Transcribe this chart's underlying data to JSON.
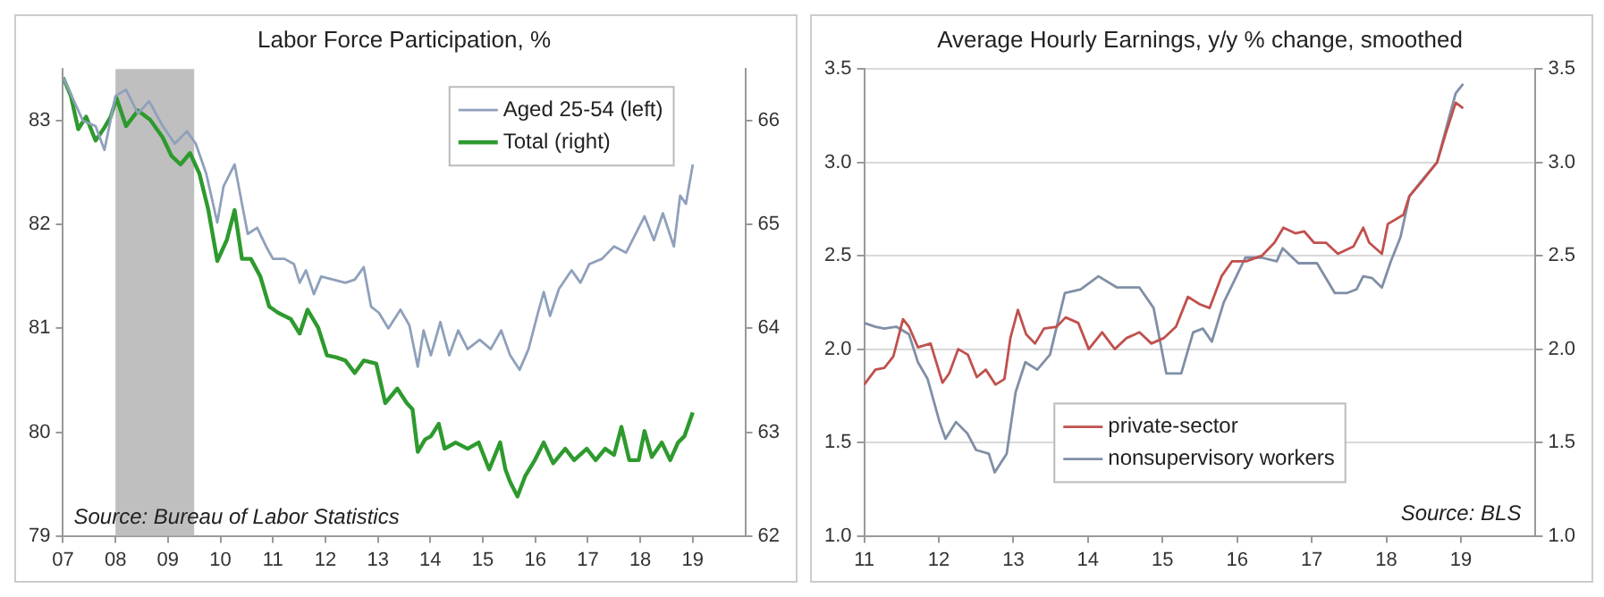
{
  "chart_data": [
    {
      "type": "line",
      "title": "Labor Force Participation, %",
      "xlim": [
        2007,
        2020
      ],
      "xticks": [
        {
          "value": 2007,
          "label": "07"
        },
        {
          "value": 2008,
          "label": "08"
        },
        {
          "value": 2009,
          "label": "09"
        },
        {
          "value": 2010,
          "label": "10"
        },
        {
          "value": 2011,
          "label": "11"
        },
        {
          "value": 2012,
          "label": "12"
        },
        {
          "value": 2013,
          "label": "13"
        },
        {
          "value": 2014,
          "label": "14"
        },
        {
          "value": 2015,
          "label": "15"
        },
        {
          "value": 2016,
          "label": "16"
        },
        {
          "value": 2017,
          "label": "17"
        },
        {
          "value": 2018,
          "label": "18"
        },
        {
          "value": 2019,
          "label": "19"
        }
      ],
      "ylim": [
        79,
        83.5
      ],
      "yticks": [
        79,
        80,
        81,
        82,
        83
      ],
      "y2lim": [
        62,
        66.5
      ],
      "y2ticks": [
        62,
        63,
        64,
        65,
        66
      ],
      "grid": false,
      "legend": "top right",
      "annotations": [
        "Source: Bureau of Labor Statistics"
      ],
      "bands": [
        {
          "axis": "x",
          "from": 2008,
          "to": 2009.5,
          "color": "#bfbfbf"
        }
      ],
      "series": [
        {
          "name": "Aged 25-54 (left)",
          "color": "#8fa0bb",
          "x": [
            2007,
            2007.21,
            2007.38,
            2007.62,
            2007.79,
            2008,
            2008.2,
            2008.43,
            2008.64,
            2008.9,
            2009.13,
            2009.36,
            2009.53,
            2009.73,
            2009.94,
            2010.06,
            2010.27,
            2010.41,
            2010.52,
            2010.7,
            2010.87,
            2011,
            2011.22,
            2011.4,
            2011.51,
            2011.63,
            2011.78,
            2011.92,
            2012.15,
            2012.38,
            2012.56,
            2012.73,
            2012.87,
            2013.02,
            2013.2,
            2013.43,
            2013.6,
            2013.76,
            2013.87,
            2014.01,
            2014.19,
            2014.36,
            2014.53,
            2014.71,
            2014.94,
            2015.15,
            2015.35,
            2015.52,
            2015.7,
            2015.87,
            2016.05,
            2016.16,
            2016.28,
            2016.45,
            2016.69,
            2016.86,
            2017.03,
            2017.27,
            2017.5,
            2017.73,
            2017.91,
            2018.08,
            2018.26,
            2018.43,
            2018.64,
            2018.76,
            2018.87,
            2019
          ],
          "values": [
            83.42,
            83.19,
            83.0,
            82.95,
            82.72,
            83.24,
            83.3,
            83.07,
            83.19,
            82.95,
            82.78,
            82.9,
            82.78,
            82.49,
            82.02,
            82.37,
            82.58,
            82.2,
            81.91,
            81.97,
            81.79,
            81.67,
            81.67,
            81.62,
            81.44,
            81.56,
            81.33,
            81.5,
            81.47,
            81.44,
            81.47,
            81.59,
            81.21,
            81.15,
            81.0,
            81.18,
            81.03,
            80.63,
            80.98,
            80.74,
            81.06,
            80.74,
            80.98,
            80.8,
            80.89,
            80.8,
            80.98,
            80.74,
            80.6,
            80.8,
            81.15,
            81.35,
            81.12,
            81.38,
            81.56,
            81.44,
            81.62,
            81.67,
            81.79,
            81.73,
            81.91,
            82.08,
            81.85,
            82.11,
            81.79,
            82.28,
            82.2,
            82.58
          ]
        },
        {
          "name": "Total (right)",
          "color": "#2e9a2e",
          "axis": "y2",
          "x": [
            2007,
            2007.15,
            2007.29,
            2007.44,
            2007.62,
            2007.77,
            2007.91,
            2008.02,
            2008.2,
            2008.43,
            2008.66,
            2008.9,
            2009.07,
            2009.24,
            2009.42,
            2009.6,
            2009.77,
            2009.94,
            2010.12,
            2010.27,
            2010.41,
            2010.58,
            2010.76,
            2010.93,
            2011.1,
            2011.34,
            2011.51,
            2011.66,
            2011.86,
            2012.03,
            2012.21,
            2012.38,
            2012.56,
            2012.73,
            2012.97,
            2013.14,
            2013.37,
            2013.55,
            2013.66,
            2013.76,
            2013.9,
            2014.01,
            2014.16,
            2014.27,
            2014.48,
            2014.71,
            2014.92,
            2015.12,
            2015.33,
            2015.43,
            2015.52,
            2015.66,
            2015.81,
            2015.99,
            2016.16,
            2016.34,
            2016.57,
            2016.74,
            2016.98,
            2017.15,
            2017.33,
            2017.5,
            2017.64,
            2017.79,
            2017.97,
            2018.08,
            2018.22,
            2018.41,
            2018.57,
            2018.72,
            2018.84,
            2019
          ],
          "values": [
            66.42,
            66.24,
            65.92,
            66.04,
            65.81,
            65.92,
            66.04,
            66.22,
            65.95,
            66.1,
            66.01,
            65.84,
            65.66,
            65.58,
            65.69,
            65.49,
            65.14,
            64.65,
            64.85,
            65.14,
            64.67,
            64.67,
            64.5,
            64.21,
            64.15,
            64.09,
            63.95,
            64.18,
            64.01,
            63.74,
            63.72,
            63.69,
            63.57,
            63.69,
            63.66,
            63.28,
            63.42,
            63.28,
            63.22,
            62.81,
            62.93,
            62.96,
            63.08,
            62.84,
            62.9,
            62.84,
            62.9,
            62.64,
            62.9,
            62.64,
            62.52,
            62.38,
            62.58,
            62.73,
            62.9,
            62.7,
            62.84,
            62.73,
            62.84,
            62.73,
            62.84,
            62.78,
            63.05,
            62.73,
            62.73,
            63.01,
            62.76,
            62.9,
            62.73,
            62.9,
            62.96,
            63.19
          ]
        }
      ]
    },
    {
      "type": "line",
      "title": "Average Hourly Earnings, y/y % change, smoothed",
      "xlim": [
        2011,
        2020
      ],
      "xticks": [
        {
          "value": 2011,
          "label": "11"
        },
        {
          "value": 2012,
          "label": "12"
        },
        {
          "value": 2013,
          "label": "13"
        },
        {
          "value": 2014,
          "label": "14"
        },
        {
          "value": 2015,
          "label": "15"
        },
        {
          "value": 2016,
          "label": "16"
        },
        {
          "value": 2017,
          "label": "17"
        },
        {
          "value": 2018,
          "label": "18"
        },
        {
          "value": 2019,
          "label": "19"
        }
      ],
      "ylim": [
        1,
        3.5
      ],
      "yticks": [
        {
          "value": 1,
          "label": "1.0"
        },
        1.5,
        {
          "value": 2,
          "label": "2.0"
        },
        2.5,
        {
          "value": 3,
          "label": "3.0"
        },
        3.5
      ],
      "y2lim": [
        1,
        3.5
      ],
      "y2ticks": [
        {
          "value": 1,
          "label": "1.0"
        },
        1.5,
        {
          "value": 2,
          "label": "2.0"
        },
        2.5,
        {
          "value": 3,
          "label": "3.0"
        },
        3.5
      ],
      "grid": "y",
      "legend": "bottom",
      "annotations": [
        "Source: BLS"
      ],
      "series": [
        {
          "name": "private-sector",
          "color": "#c0504d",
          "x": [
            2011,
            2011.15,
            2011.27,
            2011.39,
            2011.52,
            2011.6,
            2011.72,
            2011.89,
            2012.05,
            2012.14,
            2012.26,
            2012.39,
            2012.51,
            2012.63,
            2012.76,
            2012.88,
            2012.96,
            2013.06,
            2013.17,
            2013.29,
            2013.41,
            2013.58,
            2013.7,
            2013.87,
            2014.01,
            2014.19,
            2014.36,
            2014.52,
            2014.69,
            2014.85,
            2015.02,
            2015.18,
            2015.34,
            2015.5,
            2015.63,
            2015.79,
            2015.93,
            2016.12,
            2016.33,
            2016.5,
            2016.62,
            2016.78,
            2016.9,
            2017.03,
            2017.19,
            2017.35,
            2017.56,
            2017.69,
            2017.77,
            2017.94,
            2018.02,
            2018.23,
            2018.31,
            2018.48,
            2018.68,
            2018.8,
            2018.93,
            2019.03
          ],
          "values": [
            1.81,
            1.89,
            1.9,
            1.96,
            2.16,
            2.12,
            2.01,
            2.03,
            1.82,
            1.87,
            2.0,
            1.97,
            1.85,
            1.89,
            1.81,
            1.84,
            2.06,
            2.21,
            2.08,
            2.03,
            2.11,
            2.12,
            2.17,
            2.14,
            2.0,
            2.09,
            2.0,
            2.06,
            2.09,
            2.03,
            2.06,
            2.12,
            2.28,
            2.24,
            2.22,
            2.39,
            2.47,
            2.47,
            2.5,
            2.57,
            2.65,
            2.62,
            2.63,
            2.57,
            2.57,
            2.51,
            2.55,
            2.65,
            2.57,
            2.51,
            2.67,
            2.72,
            2.82,
            2.9,
            3.0,
            3.16,
            3.32,
            3.29
          ]
        },
        {
          "name": "nonsupervisory workers",
          "color": "#7f8fa6",
          "x": [
            2011,
            2011.15,
            2011.27,
            2011.43,
            2011.6,
            2011.72,
            2011.85,
            2012.01,
            2012.09,
            2012.23,
            2012.38,
            2012.5,
            2012.67,
            2012.75,
            2012.91,
            2013.03,
            2013.16,
            2013.32,
            2013.49,
            2013.69,
            2013.9,
            2014.14,
            2014.39,
            2014.69,
            2014.88,
            2015.05,
            2015.25,
            2015.41,
            2015.54,
            2015.66,
            2015.82,
            2015.99,
            2016.11,
            2016.33,
            2016.53,
            2016.61,
            2016.82,
            2017.07,
            2017.31,
            2017.47,
            2017.6,
            2017.69,
            2017.81,
            2017.94,
            2018.06,
            2018.19,
            2018.31,
            2018.51,
            2018.68,
            2018.84,
            2018.93,
            2019.03
          ],
          "values": [
            2.14,
            2.12,
            2.11,
            2.12,
            2.08,
            1.93,
            1.84,
            1.61,
            1.52,
            1.61,
            1.55,
            1.46,
            1.44,
            1.34,
            1.44,
            1.77,
            1.93,
            1.89,
            1.97,
            2.3,
            2.32,
            2.39,
            2.33,
            2.33,
            2.22,
            1.87,
            1.87,
            2.09,
            2.11,
            2.04,
            2.25,
            2.39,
            2.49,
            2.49,
            2.47,
            2.54,
            2.46,
            2.46,
            2.3,
            2.3,
            2.32,
            2.39,
            2.38,
            2.33,
            2.47,
            2.6,
            2.82,
            2.92,
            3.0,
            3.24,
            3.37,
            3.42
          ]
        }
      ]
    }
  ]
}
